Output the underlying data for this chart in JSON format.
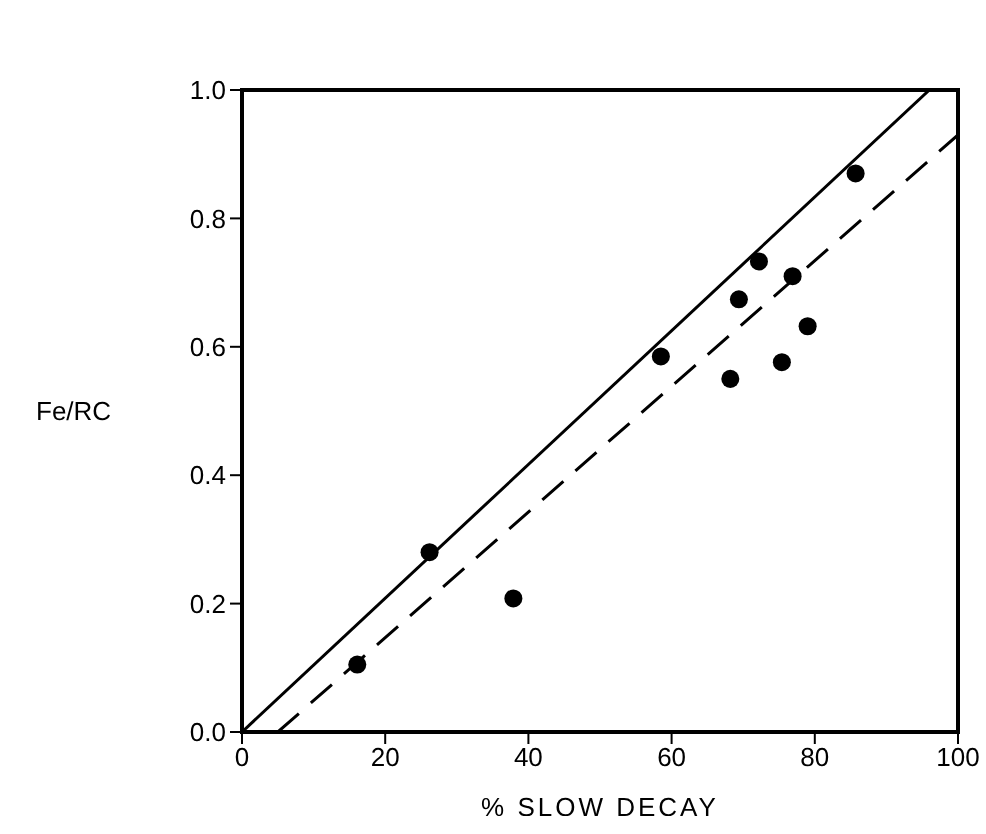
{
  "chart_data": {
    "type": "scatter",
    "xlabel": "% SLOW DECAY",
    "ylabel": "Fe/RC",
    "xlim": [
      0,
      100
    ],
    "xticks": [
      0,
      20,
      40,
      60,
      80,
      100
    ],
    "ylim": [
      0,
      1
    ],
    "yticks": [
      {
        "value": 0,
        "label": "0.0"
      },
      {
        "value": 0.2,
        "label": "0.2"
      },
      {
        "value": 0.4,
        "label": "0.4"
      },
      {
        "value": 0.6,
        "label": "0.6"
      },
      {
        "value": 0.8,
        "label": "0.8"
      },
      {
        "value": 1,
        "label": "1.0"
      }
    ],
    "series": [
      {
        "color": "#000000",
        "marker": "circle",
        "x": [
          16.1,
          26.2,
          37.9,
          58.5,
          68.2,
          69.4,
          72.2,
          75.4,
          76.9,
          79.0,
          85.7
        ],
        "values": [
          0.105,
          0.28,
          0.208,
          0.585,
          0.55,
          0.674,
          0.733,
          0.576,
          0.71,
          0.632,
          0.87
        ]
      },
      {
        "type": "line",
        "color": "#000000",
        "line_style": "solid",
        "marker": "none",
        "x": [
          0,
          96
        ],
        "values": [
          0,
          1.0
        ]
      },
      {
        "type": "line",
        "color": "#000000",
        "line_style": "dashed",
        "marker": "none",
        "x": [
          5,
          100
        ],
        "values": [
          0,
          0.93
        ]
      }
    ]
  }
}
